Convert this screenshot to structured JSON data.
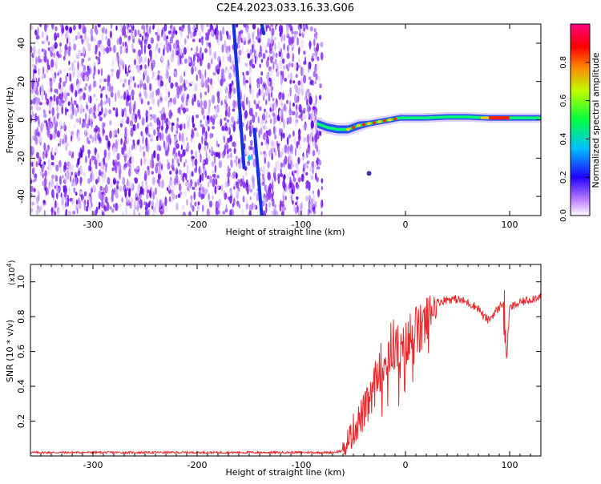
{
  "title": "C2E4.2023.033.16.33.G06",
  "chart_data": [
    {
      "type": "heatmap",
      "xlabel": "Height of straight line (km)",
      "ylabel": "Frequency (Hz)",
      "xlim": [
        -360,
        130
      ],
      "ylim": [
        -50,
        50
      ],
      "xticks": [
        -300,
        -200,
        -100,
        0,
        100
      ],
      "yticks": [
        -40,
        -20,
        0,
        20,
        40
      ],
      "xtick_labels": [
        "-300",
        "-200",
        "-100",
        "0",
        "100"
      ],
      "ytick_labels": [
        "-40",
        "-20",
        "0",
        "20",
        "40"
      ],
      "colorbar": {
        "label": "Normalized spectral amplitude",
        "range": [
          0,
          1
        ],
        "ticks": [
          0.0,
          0.2,
          0.4,
          0.6,
          0.8
        ],
        "tick_labels": [
          "0.0",
          "0.2",
          "0.4",
          "0.6",
          "0.8"
        ],
        "colors": [
          "#ffffff",
          "#8000ff",
          "#0000ff",
          "#00ffff",
          "#00ff00",
          "#ffff00",
          "#ff0000",
          "#ff0080"
        ]
      },
      "noise_region_x": [
        -360,
        -80
      ],
      "signal_trace": {
        "x": [
          -85,
          -75,
          -65,
          -55,
          -45,
          -35,
          -25,
          -15,
          -5,
          0,
          20,
          40,
          60,
          80,
          90,
          100,
          110,
          130
        ],
        "y": [
          -2,
          -4,
          -5,
          -5,
          -3,
          -2,
          -1,
          0,
          1,
          1,
          1,
          1.5,
          1.5,
          1,
          1,
          1,
          1,
          1
        ],
        "peak_amplitude_x": [
          80,
          100
        ]
      },
      "streaks": [
        {
          "x": [
            -165,
            -155
          ],
          "y": [
            50,
            -25
          ]
        },
        {
          "x": [
            -145,
            -138
          ],
          "y": [
            -5,
            -50
          ]
        },
        {
          "x": [
            -138,
            -136
          ],
          "y": [
            50,
            45
          ]
        }
      ],
      "isolated_point": {
        "x": -35,
        "y": -28
      }
    },
    {
      "type": "line",
      "xlabel": "Height of straight line (km)",
      "ylabel": "SNR (10 * v/v)",
      "ylabel_multiplier": "(x10",
      "ylabel_exponent": "4",
      "ylabel_close": ")",
      "xlim": [
        -360,
        130
      ],
      "ylim": [
        0,
        1.1
      ],
      "xticks": [
        -300,
        -200,
        -100,
        0,
        100
      ],
      "xtick_labels": [
        "-300",
        "-200",
        "-100",
        "0",
        "100"
      ],
      "yticks": [
        0.2,
        0.4,
        0.6,
        0.8,
        1.0
      ],
      "ytick_labels": [
        "0.2",
        "0.4",
        "0.6",
        "0.8",
        "1.0"
      ],
      "line_color": "#e8282b",
      "series": [
        {
          "x": [
            -360,
            -300,
            -250,
            -200,
            -150,
            -100,
            -70,
            -60,
            -55,
            -50,
            -45,
            -40,
            -35,
            -30,
            -25,
            -20,
            -15,
            -10,
            -5,
            0,
            5,
            10,
            15,
            20,
            25,
            30,
            40,
            50,
            60,
            70,
            75,
            80,
            85,
            90,
            95,
            97,
            100,
            110,
            120,
            130
          ],
          "y": [
            0.02,
            0.02,
            0.02,
            0.02,
            0.02,
            0.02,
            0.02,
            0.03,
            0.08,
            0.15,
            0.2,
            0.25,
            0.3,
            0.4,
            0.5,
            0.55,
            0.6,
            0.65,
            0.55,
            0.6,
            0.68,
            0.7,
            0.72,
            0.78,
            0.85,
            0.88,
            0.9,
            0.9,
            0.88,
            0.85,
            0.8,
            0.78,
            0.82,
            0.85,
            0.9,
            0.55,
            0.85,
            0.88,
            0.9,
            0.92
          ]
        }
      ]
    }
  ]
}
